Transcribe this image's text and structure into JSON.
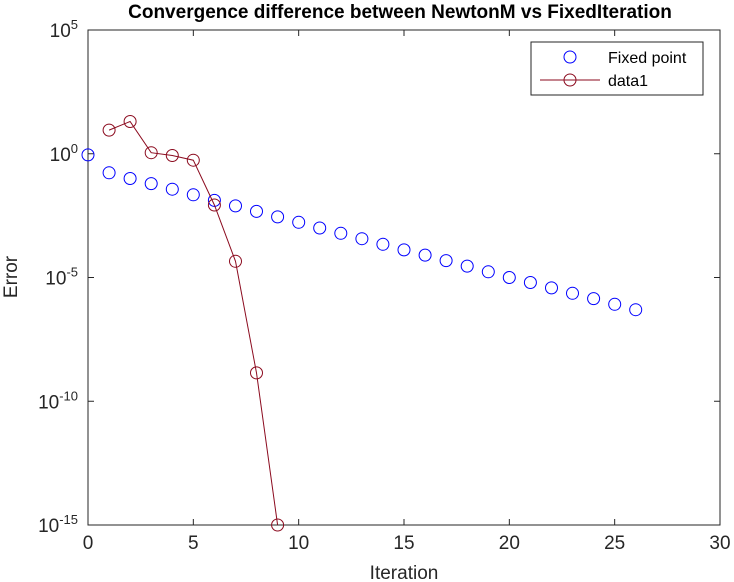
{
  "chart_data": {
    "type": "scatter",
    "title": "Convergence difference between NewtonM vs FixedIteration",
    "xlabel": "Iteration",
    "ylabel": "Error",
    "xlim": [
      0,
      30
    ],
    "ylim": [
      1e-15,
      100000
    ],
    "yscale": "log",
    "grid": false,
    "legend_position": "top-right",
    "x_ticks": [
      "0",
      "5",
      "10",
      "15",
      "20",
      "25",
      "30"
    ],
    "y_ticks": [
      {
        "value": 1e-15,
        "base": "10",
        "exp": "-15"
      },
      {
        "value": 1e-10,
        "base": "10",
        "exp": "-10"
      },
      {
        "value": 1e-05,
        "base": "10",
        "exp": "-5"
      },
      {
        "value": 1,
        "base": "10",
        "exp": "0"
      },
      {
        "value": 100000,
        "base": "10",
        "exp": "5"
      }
    ],
    "series": [
      {
        "name": "Fixed point",
        "color": "#0000ff",
        "marker": "circle",
        "line": false,
        "x": [
          0,
          1,
          2,
          3,
          4,
          5,
          6,
          7,
          8,
          9,
          10,
          11,
          12,
          13,
          14,
          15,
          16,
          17,
          18,
          19,
          20,
          21,
          22,
          23,
          24,
          25,
          26
        ],
        "y": [
          0.9,
          0.17,
          0.1,
          0.062,
          0.037,
          0.022,
          0.013,
          0.0078,
          0.0047,
          0.0028,
          0.0017,
          0.001,
          0.00061,
          0.00037,
          0.00022,
          0.00013,
          8e-05,
          4.8e-05,
          2.9e-05,
          1.7e-05,
          1e-05,
          6.3e-06,
          3.8e-06,
          2.3e-06,
          1.4e-06,
          8.3e-07,
          5e-07
        ]
      },
      {
        "name": "data1",
        "color": "#8b0a1e",
        "marker": "circle",
        "line": true,
        "x": [
          1,
          2,
          3,
          4,
          5,
          6,
          7,
          8,
          9
        ],
        "y": [
          9,
          20,
          1.1,
          0.85,
          0.55,
          0.0085,
          4.5e-05,
          1.4e-09,
          1e-15
        ]
      }
    ]
  }
}
